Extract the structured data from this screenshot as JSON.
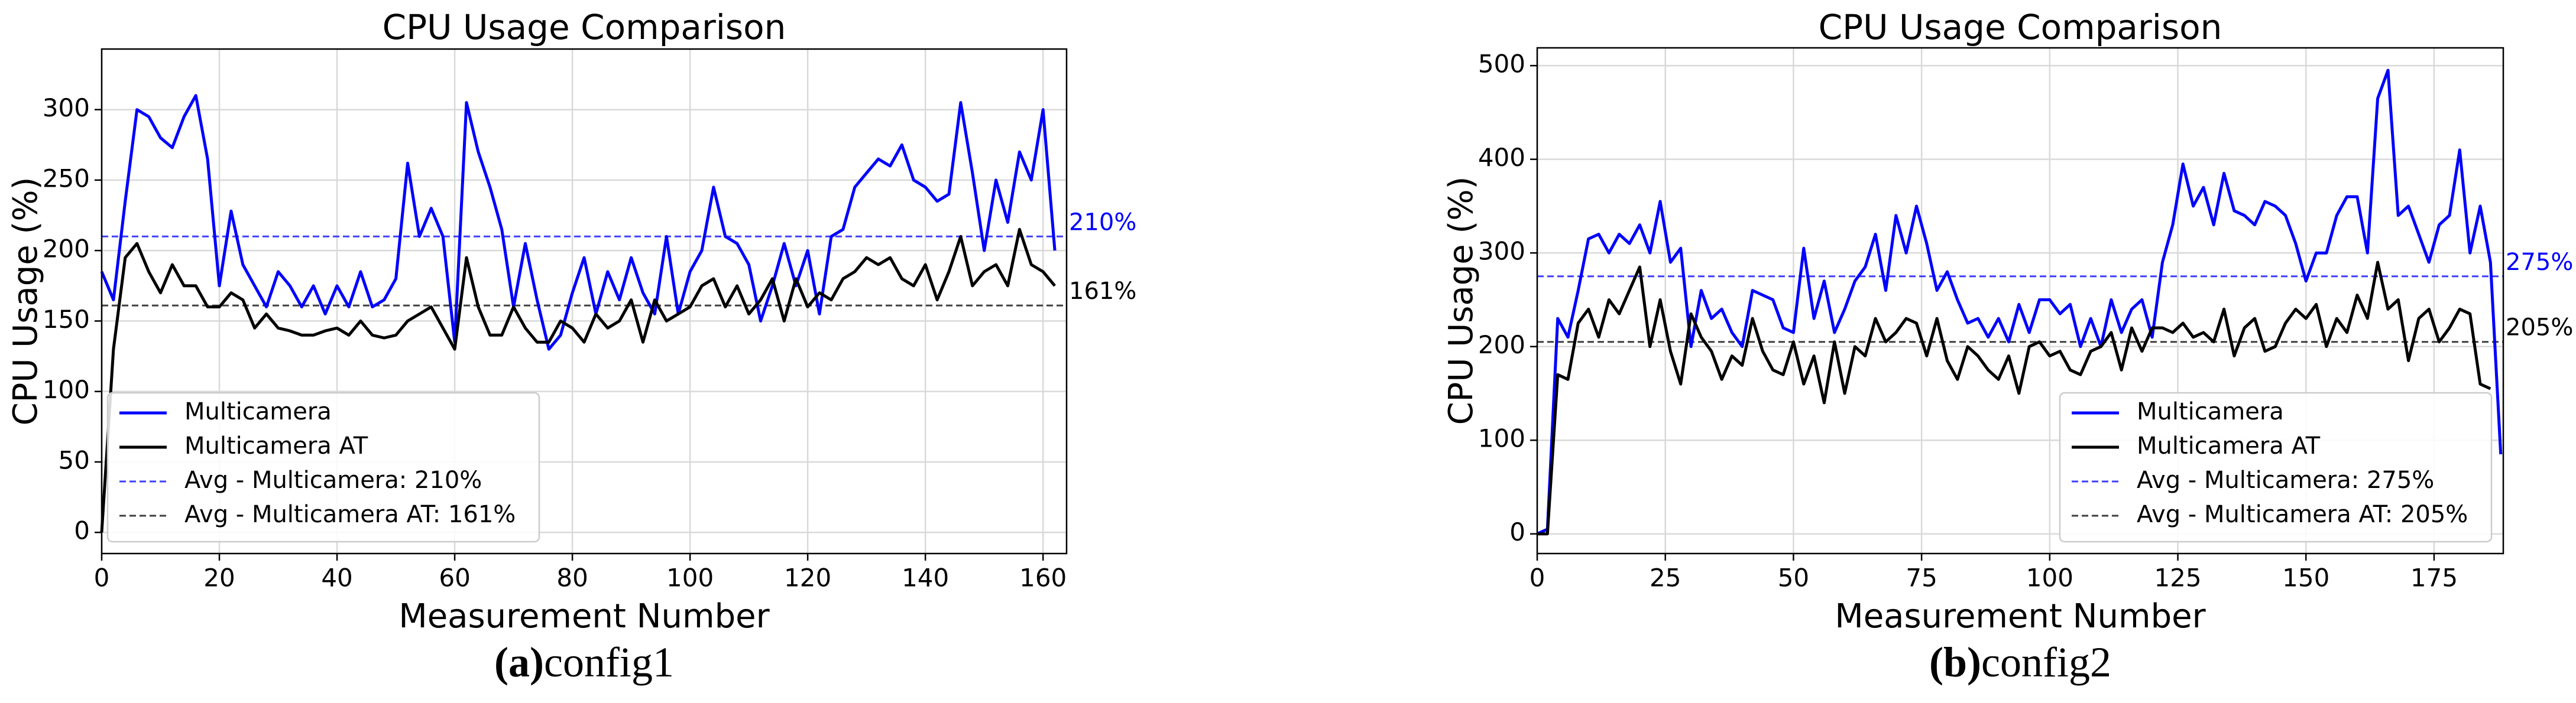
{
  "chart_data": [
    {
      "type": "line",
      "title": "CPU Usage Comparison",
      "x_label": "Measurement Number",
      "y_label": "CPU Usage (%)",
      "caption_label": "(a)",
      "caption_text": "config1",
      "xlim": [
        0,
        164
      ],
      "ylim": [
        -15,
        343
      ],
      "xticks": [
        0,
        20,
        40,
        60,
        80,
        100,
        120,
        140,
        160
      ],
      "yticks": [
        0,
        50,
        100,
        150,
        200,
        250,
        300
      ],
      "grid": true,
      "legend": "lower left",
      "x": [
        0,
        2,
        4,
        6,
        8,
        10,
        12,
        14,
        16,
        18,
        20,
        22,
        24,
        26,
        28,
        30,
        32,
        34,
        36,
        38,
        40,
        42,
        44,
        46,
        48,
        50,
        52,
        54,
        56,
        58,
        60,
        62,
        64,
        66,
        68,
        70,
        72,
        74,
        76,
        78,
        80,
        82,
        84,
        86,
        88,
        90,
        92,
        94,
        96,
        98,
        100,
        102,
        104,
        106,
        108,
        110,
        112,
        114,
        116,
        118,
        120,
        122,
        124,
        126,
        128,
        130,
        132,
        134,
        136,
        138,
        140,
        142,
        144,
        146,
        148,
        150,
        152,
        154,
        156,
        158,
        160,
        162
      ],
      "series": [
        {
          "name": "Multicamera",
          "color": "#0000ff",
          "values": [
            185,
            165,
            235,
            300,
            295,
            280,
            273,
            295,
            310,
            265,
            175,
            228,
            190,
            175,
            160,
            185,
            175,
            160,
            175,
            155,
            175,
            160,
            185,
            160,
            165,
            180,
            262,
            210,
            230,
            210,
            135,
            305,
            270,
            245,
            215,
            160,
            205,
            165,
            130,
            140,
            170,
            195,
            155,
            185,
            165,
            195,
            170,
            155,
            210,
            155,
            185,
            200,
            245,
            210,
            205,
            190,
            150,
            175,
            205,
            175,
            200,
            155,
            210,
            215,
            245,
            255,
            265,
            260,
            275,
            250,
            245,
            235,
            240,
            305,
            255,
            200,
            250,
            220,
            270,
            250,
            300,
            200
          ]
        },
        {
          "name": "Multicamera AT",
          "color": "#000000",
          "values": [
            0,
            130,
            195,
            205,
            185,
            170,
            190,
            175,
            175,
            160,
            160,
            170,
            165,
            145,
            155,
            145,
            143,
            140,
            140,
            143,
            145,
            140,
            150,
            140,
            138,
            140,
            150,
            155,
            160,
            145,
            130,
            195,
            160,
            140,
            140,
            160,
            145,
            135,
            135,
            150,
            145,
            135,
            155,
            145,
            150,
            165,
            135,
            165,
            150,
            155,
            160,
            175,
            180,
            160,
            175,
            155,
            165,
            180,
            150,
            180,
            160,
            170,
            165,
            180,
            185,
            195,
            190,
            195,
            180,
            175,
            190,
            165,
            185,
            210,
            175,
            185,
            190,
            175,
            215,
            190,
            185,
            175
          ]
        }
      ],
      "hlines": [
        {
          "name": "Avg - Multicamera: 210%",
          "value": 210,
          "label": "210%",
          "color": "#0000ff"
        },
        {
          "name": "Avg - Multicamera AT: 161%",
          "value": 161,
          "label": "161%",
          "color": "#000000"
        }
      ]
    },
    {
      "type": "line",
      "title": "CPU Usage Comparison",
      "x_label": "Measurement Number",
      "y_label": "CPU Usage (%)",
      "caption_label": "(b)",
      "caption_text": "config2",
      "xlim": [
        0,
        188.5
      ],
      "ylim": [
        -21,
        519
      ],
      "xticks": [
        0,
        25,
        50,
        75,
        100,
        125,
        150,
        175
      ],
      "yticks": [
        0,
        100,
        200,
        300,
        400,
        500
      ],
      "grid": true,
      "legend": "lower right",
      "x": [
        0,
        2,
        4,
        6,
        8,
        10,
        12,
        14,
        16,
        18,
        20,
        22,
        24,
        26,
        28,
        30,
        32,
        34,
        36,
        38,
        40,
        42,
        44,
        46,
        48,
        50,
        52,
        54,
        56,
        58,
        60,
        62,
        64,
        66,
        68,
        70,
        72,
        74,
        76,
        78,
        80,
        82,
        84,
        86,
        88,
        90,
        92,
        94,
        96,
        98,
        100,
        102,
        104,
        106,
        108,
        110,
        112,
        114,
        116,
        118,
        120,
        122,
        124,
        126,
        128,
        130,
        132,
        134,
        136,
        138,
        140,
        142,
        144,
        146,
        148,
        150,
        152,
        154,
        156,
        158,
        160,
        162,
        164,
        166,
        168,
        170,
        172,
        174,
        176,
        178,
        180,
        182,
        184,
        186,
        188
      ],
      "series": [
        {
          "name": "Multicamera",
          "color": "#0000ff",
          "values": [
            0,
            5,
            230,
            210,
            260,
            315,
            320,
            300,
            320,
            310,
            330,
            300,
            355,
            290,
            305,
            200,
            260,
            230,
            240,
            215,
            200,
            260,
            255,
            250,
            220,
            215,
            305,
            230,
            270,
            215,
            240,
            270,
            285,
            320,
            260,
            340,
            300,
            350,
            310,
            260,
            280,
            250,
            225,
            230,
            210,
            230,
            205,
            245,
            215,
            250,
            250,
            235,
            245,
            200,
            230,
            200,
            250,
            215,
            240,
            250,
            210,
            290,
            330,
            395,
            350,
            370,
            330,
            385,
            345,
            340,
            330,
            355,
            350,
            340,
            310,
            270,
            300,
            300,
            340,
            360,
            360,
            300,
            465,
            495,
            340,
            350,
            320,
            290,
            330,
            340,
            410,
            300,
            350,
            290,
            85
          ]
        },
        {
          "name": "Multicamera AT",
          "color": "#000000",
          "values": [
            0,
            0,
            170,
            165,
            225,
            240,
            210,
            250,
            235,
            260,
            285,
            200,
            250,
            195,
            160,
            235,
            210,
            195,
            165,
            190,
            180,
            230,
            195,
            175,
            170,
            205,
            160,
            190,
            140,
            205,
            150,
            200,
            190,
            230,
            205,
            215,
            230,
            225,
            190,
            230,
            185,
            165,
            200,
            190,
            175,
            165,
            190,
            150,
            200,
            205,
            190,
            195,
            175,
            170,
            195,
            200,
            215,
            175,
            220,
            195,
            220,
            220,
            215,
            225,
            210,
            215,
            205,
            240,
            190,
            220,
            230,
            195,
            200,
            225,
            240,
            230,
            245,
            200,
            230,
            215,
            255,
            230,
            290,
            240,
            250,
            185,
            230,
            240,
            205,
            220,
            240,
            235,
            160,
            155,
            null
          ]
        }
      ],
      "hlines": [
        {
          "name": "Avg - Multicamera: 275%",
          "value": 275,
          "label": "275%",
          "color": "#0000ff"
        },
        {
          "name": "Avg - Multicamera AT: 205%",
          "value": 205,
          "label": "205%",
          "color": "#000000"
        }
      ]
    }
  ]
}
